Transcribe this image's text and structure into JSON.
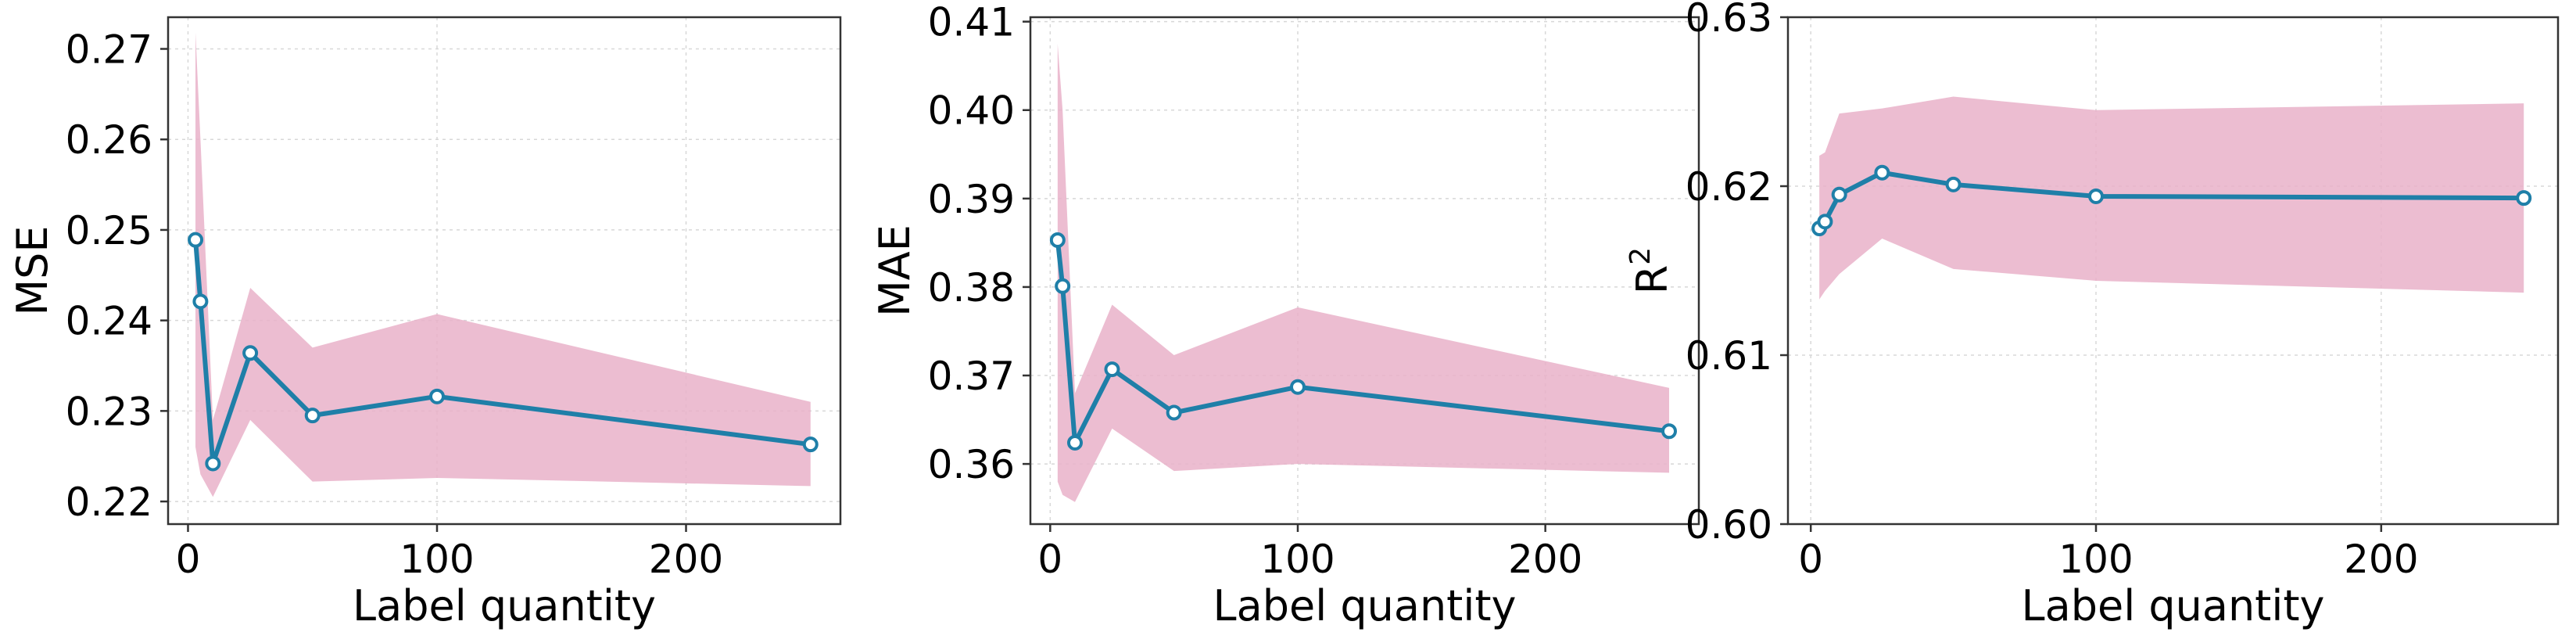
{
  "colors": {
    "line": "#1f7fa8",
    "band": "#e9b2c9",
    "marker_face": "#ffffff",
    "grid": "#d8d8d8",
    "spine": "#333333"
  },
  "chart_data": [
    {
      "type": "line",
      "xlabel": "Label quantity",
      "ylabel": "MSE",
      "xlim": [
        -8,
        262
      ],
      "ylim": [
        0.2175,
        0.2735
      ],
      "xticks": [
        0,
        100,
        200
      ],
      "xtick_labels": [
        "0",
        "100",
        "200"
      ],
      "yticks": [
        0.22,
        0.23,
        0.24,
        0.25,
        0.26,
        0.27
      ],
      "ytick_labels": [
        "0.22",
        "0.23",
        "0.24",
        "0.25",
        "0.26",
        "0.27"
      ],
      "grid": true,
      "series": [
        {
          "x": [
            3,
            5,
            10,
            25,
            50,
            100,
            250
          ],
          "y": [
            0.2489,
            0.2421,
            0.2242,
            0.2364,
            0.2295,
            0.2316,
            0.2263
          ],
          "upper": [
            0.2718,
            0.26,
            0.229,
            0.2436,
            0.237,
            0.2407,
            0.231
          ],
          "lower": [
            0.226,
            0.223,
            0.2205,
            0.229,
            0.2222,
            0.2226,
            0.2217
          ]
        }
      ]
    },
    {
      "type": "line",
      "xlabel": "Label quantity",
      "ylabel": "MAE",
      "xlim": [
        -8,
        262
      ],
      "ylim": [
        0.3532,
        0.4105
      ],
      "xticks": [
        0,
        100,
        200
      ],
      "xtick_labels": [
        "0",
        "100",
        "200"
      ],
      "yticks": [
        0.36,
        0.37,
        0.38,
        0.39,
        0.4,
        0.41
      ],
      "ytick_labels": [
        "0.36",
        "0.37",
        "0.38",
        "0.39",
        "0.40",
        "0.41"
      ],
      "grid": true,
      "series": [
        {
          "x": [
            3,
            5,
            10,
            25,
            50,
            100,
            250
          ],
          "y": [
            0.3853,
            0.3801,
            0.3624,
            0.3707,
            0.3658,
            0.3687,
            0.3637
          ],
          "upper": [
            0.4075,
            0.4,
            0.368,
            0.378,
            0.3723,
            0.3777,
            0.3686
          ],
          "lower": [
            0.358,
            0.3565,
            0.3557,
            0.364,
            0.3592,
            0.36,
            0.359
          ]
        }
      ]
    },
    {
      "type": "line",
      "xlabel": "Label quantity",
      "ylabel": "R",
      "ylabel_superscript": "2",
      "xlim": [
        -8,
        262
      ],
      "ylim": [
        0.6,
        0.63
      ],
      "xticks": [
        0,
        100,
        200
      ],
      "xtick_labels": [
        "0",
        "100",
        "200"
      ],
      "yticks": [
        0.6,
        0.61,
        0.62,
        0.63
      ],
      "ytick_labels": [
        "0.60",
        "0.61",
        "0.62",
        "0.63"
      ],
      "grid": true,
      "series": [
        {
          "x": [
            3,
            5,
            10,
            25,
            50,
            100,
            250
          ],
          "y": [
            0.6175,
            0.6179,
            0.6195,
            0.6208,
            0.6201,
            0.6194,
            0.6193
          ],
          "upper": [
            0.6218,
            0.622,
            0.6243,
            0.6246,
            0.6253,
            0.6245,
            0.6249
          ],
          "lower": [
            0.6133,
            0.6138,
            0.6148,
            0.6169,
            0.6151,
            0.6144,
            0.6137
          ]
        }
      ]
    }
  ]
}
